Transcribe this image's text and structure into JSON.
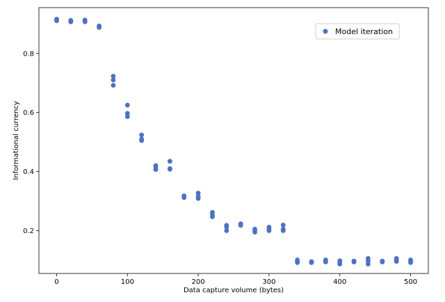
{
  "chart_data": {
    "type": "scatter",
    "title": "",
    "xlabel": "Data capture volume (bytes)",
    "ylabel": "Informational currency",
    "xlim": [
      -25,
      525
    ],
    "ylim": [
      0.055,
      0.955
    ],
    "xticks": [
      0,
      100,
      200,
      300,
      400,
      500
    ],
    "yticks": [
      0.2,
      0.4,
      0.6,
      0.8
    ],
    "xtick_labels": [
      "0",
      "100",
      "200",
      "300",
      "400",
      "500"
    ],
    "ytick_labels": [
      "0.2",
      "0.4",
      "0.6",
      "0.8"
    ],
    "grid": false,
    "legend_position": "top-right",
    "series": [
      {
        "name": "Model iteration",
        "color": "#4c72c4",
        "points": [
          [
            0,
            0.916
          ],
          [
            0,
            0.913
          ],
          [
            0,
            0.911
          ],
          [
            20,
            0.912
          ],
          [
            20,
            0.909
          ],
          [
            20,
            0.907
          ],
          [
            40,
            0.913
          ],
          [
            40,
            0.91
          ],
          [
            40,
            0.907
          ],
          [
            60,
            0.893
          ],
          [
            60,
            0.89
          ],
          [
            60,
            0.888
          ],
          [
            80,
            0.723
          ],
          [
            80,
            0.71
          ],
          [
            80,
            0.692
          ],
          [
            100,
            0.625
          ],
          [
            100,
            0.597
          ],
          [
            100,
            0.586
          ],
          [
            120,
            0.524
          ],
          [
            120,
            0.51
          ],
          [
            120,
            0.505
          ],
          [
            140,
            0.42
          ],
          [
            140,
            0.417
          ],
          [
            140,
            0.407
          ],
          [
            160,
            0.435
          ],
          [
            160,
            0.41
          ],
          [
            160,
            0.408
          ],
          [
            180,
            0.318
          ],
          [
            180,
            0.315
          ],
          [
            180,
            0.312
          ],
          [
            200,
            0.327
          ],
          [
            200,
            0.315
          ],
          [
            200,
            0.309
          ],
          [
            220,
            0.262
          ],
          [
            220,
            0.254
          ],
          [
            220,
            0.247
          ],
          [
            240,
            0.218
          ],
          [
            240,
            0.213
          ],
          [
            240,
            0.2
          ],
          [
            260,
            0.223
          ],
          [
            260,
            0.22
          ],
          [
            260,
            0.218
          ],
          [
            280,
            0.205
          ],
          [
            280,
            0.2
          ],
          [
            280,
            0.195
          ],
          [
            300,
            0.212
          ],
          [
            300,
            0.205
          ],
          [
            300,
            0.2
          ],
          [
            320,
            0.219
          ],
          [
            320,
            0.205
          ],
          [
            320,
            0.2
          ],
          [
            340,
            0.101
          ],
          [
            340,
            0.096
          ],
          [
            340,
            0.092
          ],
          [
            360,
            0.095
          ],
          [
            360,
            0.094
          ],
          [
            360,
            0.092
          ],
          [
            380,
            0.101
          ],
          [
            380,
            0.097
          ],
          [
            380,
            0.094
          ],
          [
            400,
            0.098
          ],
          [
            400,
            0.093
          ],
          [
            400,
            0.087
          ],
          [
            420,
            0.097
          ],
          [
            420,
            0.095
          ],
          [
            420,
            0.094
          ],
          [
            440,
            0.106
          ],
          [
            440,
            0.097
          ],
          [
            440,
            0.087
          ],
          [
            460,
            0.097
          ],
          [
            460,
            0.095
          ],
          [
            460,
            0.094
          ],
          [
            480,
            0.106
          ],
          [
            480,
            0.1
          ],
          [
            480,
            0.096
          ],
          [
            500,
            0.101
          ],
          [
            500,
            0.096
          ],
          [
            500,
            0.092
          ]
        ]
      }
    ]
  }
}
